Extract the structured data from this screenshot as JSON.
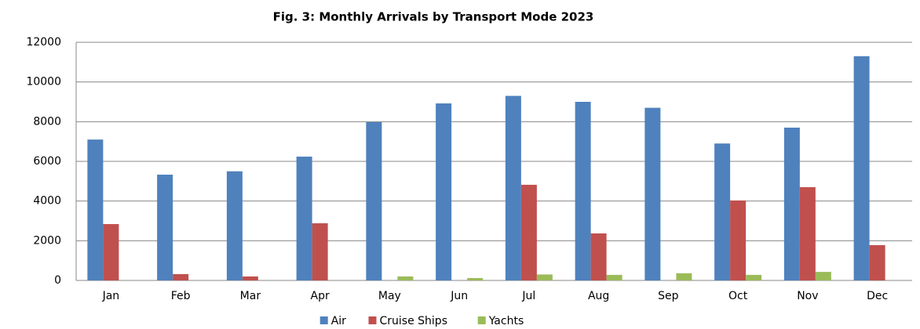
{
  "chart_data": {
    "type": "bar",
    "title": "Fig. 3:  Monthly Arrivals by Transport Mode  2023",
    "categories": [
      "Jan",
      "Feb",
      "Mar",
      "Apr",
      "May",
      "Jun",
      "Jul",
      "Aug",
      "Sep",
      "Oct",
      "Nov",
      "Dec"
    ],
    "series": [
      {
        "name": "Air",
        "color": "#4f81bd",
        "values": [
          7100,
          5330,
          5500,
          6240,
          7980,
          8920,
          9300,
          9000,
          8700,
          6900,
          7700,
          11300
        ]
      },
      {
        "name": "Cruise Ships",
        "color": "#c0504d",
        "values": [
          2840,
          320,
          200,
          2880,
          0,
          0,
          4820,
          2370,
          0,
          4030,
          4700,
          1780
        ]
      },
      {
        "name": "Yachts",
        "color": "#9bbb59",
        "values": [
          0,
          0,
          0,
          0,
          200,
          120,
          300,
          280,
          360,
          280,
          430,
          0
        ]
      }
    ],
    "ylim": [
      0,
      12000
    ],
    "yticks": [
      0,
      2000,
      4000,
      6000,
      8000,
      10000,
      12000
    ],
    "grid": true,
    "legend": "bottom"
  }
}
